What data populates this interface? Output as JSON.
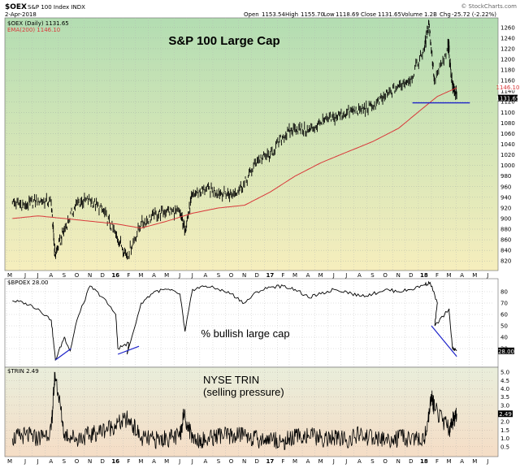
{
  "header": {
    "symbol": "$OEX",
    "name": "S&P 100 Index INDX",
    "date": "2-Apr-2018",
    "open_label": "Open",
    "open": "1153.54",
    "high_label": "High",
    "high": "1155.70",
    "low_label": "Low",
    "low": "1118.69",
    "close_label": "Close",
    "close": "1131.65",
    "volume_label": "Volume",
    "volume": "1.2B",
    "chg_label": "Chg",
    "chg": "-25.72 (-2.22%)",
    "watermark": "© StockCharts.com"
  },
  "colors": {
    "price_bg_top": "#b3ddb2",
    "price_bg_bottom": "#f6eebd",
    "bp_bg": "#ffffff",
    "trin_bg_top": "#e9eedb",
    "trin_bg_bottom": "#f5ddc6",
    "ema": "#d9383a",
    "candle": "#000000",
    "trendline": "#1c22c9",
    "support": "#1c22c9"
  },
  "chart_data": [
    {
      "type": "line",
      "panel": "price",
      "title": "S&P 100 Large Cap",
      "legend": [
        {
          "text": "$OEX (Daily) 1131.65",
          "color": "#000000"
        },
        {
          "text": "EMA(200) 1146.10",
          "color": "#d9383a"
        }
      ],
      "y_ticks": [
        820,
        840,
        860,
        880,
        900,
        920,
        940,
        960,
        980,
        1000,
        1020,
        1040,
        1060,
        1080,
        1100,
        1120,
        1140,
        1160,
        1180,
        1200,
        1220,
        1240,
        1260
      ],
      "ylim": [
        805,
        1275
      ],
      "last_value_labels": [
        "1146.10",
        "1131.65"
      ],
      "x_labels": [
        "M",
        "J",
        "J",
        "A",
        "S",
        "O",
        "N",
        "D",
        "16",
        "F",
        "M",
        "A",
        "M",
        "J",
        "J",
        "A",
        "S",
        "O",
        "N",
        "D",
        "17",
        "F",
        "M",
        "A",
        "M",
        "J",
        "J",
        "A",
        "S",
        "O",
        "N",
        "D",
        "18",
        "F",
        "M",
        "A",
        "M",
        "J"
      ],
      "series": [
        {
          "name": "$OEX (Daily)",
          "x": [
            "2015-05",
            "2015-06",
            "2015-07",
            "2015-08",
            "2015-08-24",
            "2015-09",
            "2015-10",
            "2015-11",
            "2015-12",
            "2016-01",
            "2016-02-11",
            "2016-03",
            "2016-04",
            "2016-05",
            "2016-06",
            "2016-06-27",
            "2016-07",
            "2016-08",
            "2016-09",
            "2016-10",
            "2016-11",
            "2016-12",
            "2017-01",
            "2017-02",
            "2017-03",
            "2017-04",
            "2017-05",
            "2017-06",
            "2017-07",
            "2017-08",
            "2017-09",
            "2017-10",
            "2017-11",
            "2017-12",
            "2018-01",
            "2018-01-26",
            "2018-02-08",
            "2018-03",
            "2018-03-12",
            "2018-03-23",
            "2018-04-02"
          ],
          "values": [
            930,
            925,
            935,
            930,
            830,
            880,
            930,
            935,
            915,
            870,
            830,
            890,
            905,
            915,
            910,
            880,
            945,
            955,
            950,
            945,
            965,
            1010,
            1020,
            1055,
            1070,
            1065,
            1080,
            1090,
            1100,
            1105,
            1110,
            1130,
            1150,
            1165,
            1220,
            1270,
            1160,
            1220,
            1230,
            1150,
            1131.65
          ]
        },
        {
          "name": "EMA(200)",
          "x": [
            "2015-05",
            "2015-07",
            "2015-09",
            "2015-11",
            "2016-01",
            "2016-03",
            "2016-05",
            "2016-07",
            "2016-09",
            "2016-11",
            "2017-01",
            "2017-03",
            "2017-05",
            "2017-07",
            "2017-09",
            "2017-11",
            "2018-01",
            "2018-02",
            "2018-03",
            "2018-04-02"
          ],
          "values": [
            900,
            905,
            900,
            895,
            890,
            882,
            895,
            910,
            920,
            925,
            950,
            980,
            1005,
            1025,
            1045,
            1070,
            1110,
            1130,
            1140,
            1146.1
          ]
        }
      ],
      "annotations": [
        {
          "type": "support_line",
          "value": 1118
        }
      ]
    },
    {
      "type": "line",
      "panel": "bullish_percent",
      "title": "% bullish large cap",
      "legend": [
        {
          "text": "$BPOEX 28.00",
          "color": "#000000"
        }
      ],
      "y_ticks": [
        30,
        40,
        50,
        60,
        70,
        80
      ],
      "ylim": [
        15,
        90
      ],
      "last_value_label": "28.00",
      "series": [
        {
          "name": "$BPOEX",
          "x": [
            "2015-05",
            "2015-06",
            "2015-07",
            "2015-08",
            "2015-08-25",
            "2015-09",
            "2015-09-29",
            "2015-10",
            "2015-11",
            "2015-12",
            "2016-01",
            "2016-01-20",
            "2016-02",
            "2016-02-11",
            "2016-03",
            "2016-04",
            "2016-05",
            "2016-06",
            "2016-06-27",
            "2016-07",
            "2016-08",
            "2016-09",
            "2016-10",
            "2016-11",
            "2016-12",
            "2017-01",
            "2017-02",
            "2017-03",
            "2017-04",
            "2017-05",
            "2017-06",
            "2017-07",
            "2017-08",
            "2017-09",
            "2017-10",
            "2017-11",
            "2017-12",
            "2018-01",
            "2018-01-29",
            "2018-02",
            "2018-02-09",
            "2018-03",
            "2018-03-15",
            "2018-03-23",
            "2018-04-02"
          ],
          "values": [
            72,
            70,
            65,
            55,
            20,
            40,
            28,
            55,
            85,
            75,
            60,
            30,
            35,
            25,
            70,
            80,
            82,
            78,
            45,
            82,
            85,
            82,
            78,
            70,
            80,
            84,
            85,
            82,
            75,
            78,
            82,
            80,
            76,
            78,
            82,
            80,
            82,
            86,
            88,
            70,
            50,
            65,
            62,
            30,
            28
          ]
        }
      ],
      "annotations": [
        {
          "type": "trendline",
          "from": [
            "2015-08-25",
            20
          ],
          "to": [
            "2015-10-01",
            30
          ]
        },
        {
          "type": "trendline",
          "from": [
            "2016-01-20",
            25
          ],
          "to": [
            "2016-03-10",
            32
          ]
        },
        {
          "type": "trendline",
          "from": [
            "2018-02-01",
            50
          ],
          "to": [
            "2018-04-02",
            23
          ]
        }
      ]
    },
    {
      "type": "line",
      "panel": "trin",
      "title": "NYSE TRIN",
      "subtitle": "(selling pressure)",
      "legend": [
        {
          "text": "$TRIN 2.49",
          "color": "#000000"
        }
      ],
      "y_ticks": [
        0.5,
        1.0,
        1.5,
        2.0,
        2.5,
        3.0,
        3.5,
        4.0,
        4.5,
        5.0
      ],
      "ylim": [
        0,
        5.2
      ],
      "last_value_label": "2.49",
      "series": [
        {
          "name": "$TRIN",
          "x": [
            "2015-05",
            "2015-06",
            "2015-07",
            "2015-08",
            "2015-08-24",
            "2015-09",
            "2015-10",
            "2015-11",
            "2015-12",
            "2016-01",
            "2016-02",
            "2016-03",
            "2016-04",
            "2016-05",
            "2016-06",
            "2016-06-24",
            "2016-07",
            "2016-08",
            "2016-09",
            "2016-10",
            "2016-11",
            "2016-12",
            "2017-01",
            "2017-02",
            "2017-03",
            "2017-04",
            "2017-05",
            "2017-06",
            "2017-07",
            "2017-08",
            "2017-09",
            "2017-10",
            "2017-11",
            "2017-12",
            "2018-01",
            "2018-02-02",
            "2018-02-08",
            "2018-03",
            "2018-03-22",
            "2018-04-02"
          ],
          "values": [
            1.0,
            1.2,
            1.0,
            1.5,
            5.0,
            1.3,
            1.0,
            1.2,
            1.5,
            1.8,
            2.2,
            1.0,
            0.9,
            1.0,
            1.1,
            2.5,
            1.0,
            0.9,
            1.2,
            1.1,
            1.3,
            0.9,
            1.0,
            0.8,
            1.1,
            1.2,
            1.0,
            1.0,
            0.9,
            1.2,
            1.0,
            0.9,
            1.0,
            1.0,
            0.9,
            3.5,
            2.8,
            1.5,
            2.0,
            2.49
          ]
        }
      ]
    }
  ]
}
